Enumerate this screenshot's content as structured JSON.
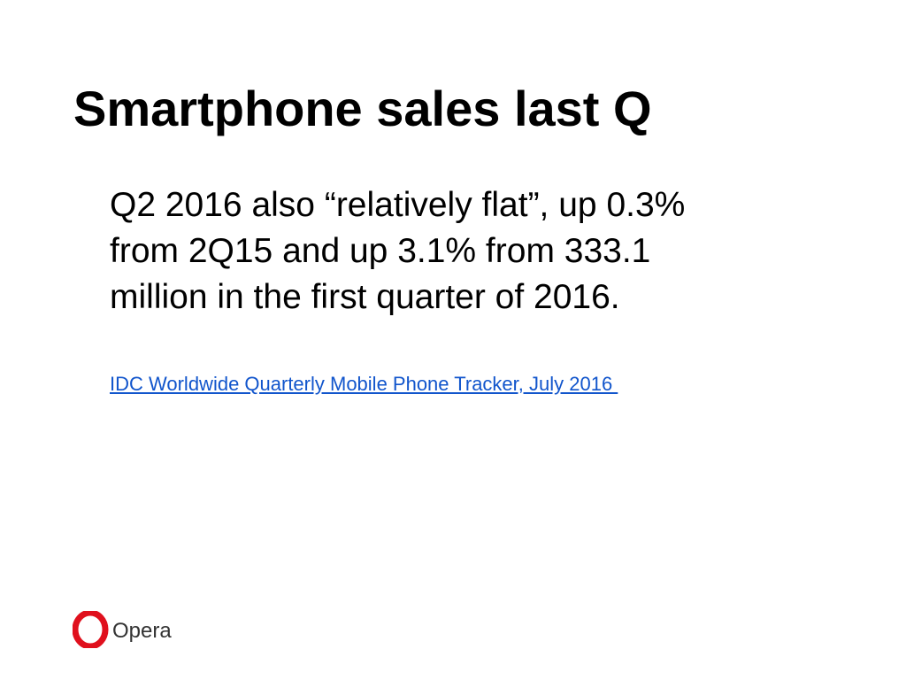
{
  "title": "Smartphone sales last Q",
  "body": [
    "Q2 2016 also “relatively flat”, up 0.3%",
    "from 2Q15 and up 3.1% from 333.1",
    "million in the first quarter of 2016."
  ],
  "source_link": "IDC Worldwide Quarterly Mobile Phone Tracker, July 2016 ",
  "logo_text": "Opera"
}
